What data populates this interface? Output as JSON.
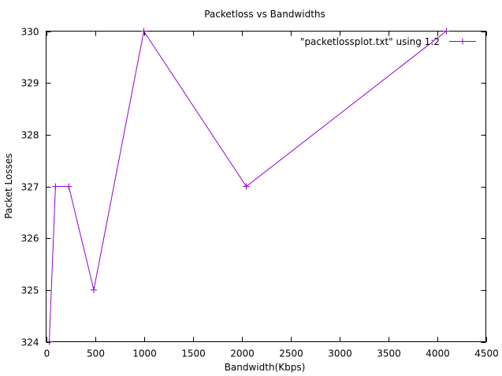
{
  "chart_data": {
    "type": "line",
    "title": "Packetloss vs Bandwidths",
    "xlabel": "Bandwidth(Kbps)",
    "ylabel": "Packet Losses",
    "xlim": [
      0,
      4500
    ],
    "ylim": [
      324,
      330
    ],
    "xticks": [
      0,
      500,
      1000,
      1500,
      2000,
      2500,
      3000,
      3500,
      4000,
      4500
    ],
    "yticks": [
      324,
      325,
      326,
      327,
      328,
      329,
      330
    ],
    "grid": false,
    "legend_position": "top-right",
    "series": [
      {
        "name": "\"packetlossplot.txt\" using 1:2",
        "color": "#9400d3",
        "marker": "plus",
        "x": [
          32,
          96,
          232,
          488,
          1000,
          2048,
          4096
        ],
        "y": [
          324,
          327,
          327,
          325,
          330,
          327,
          330
        ]
      }
    ]
  }
}
